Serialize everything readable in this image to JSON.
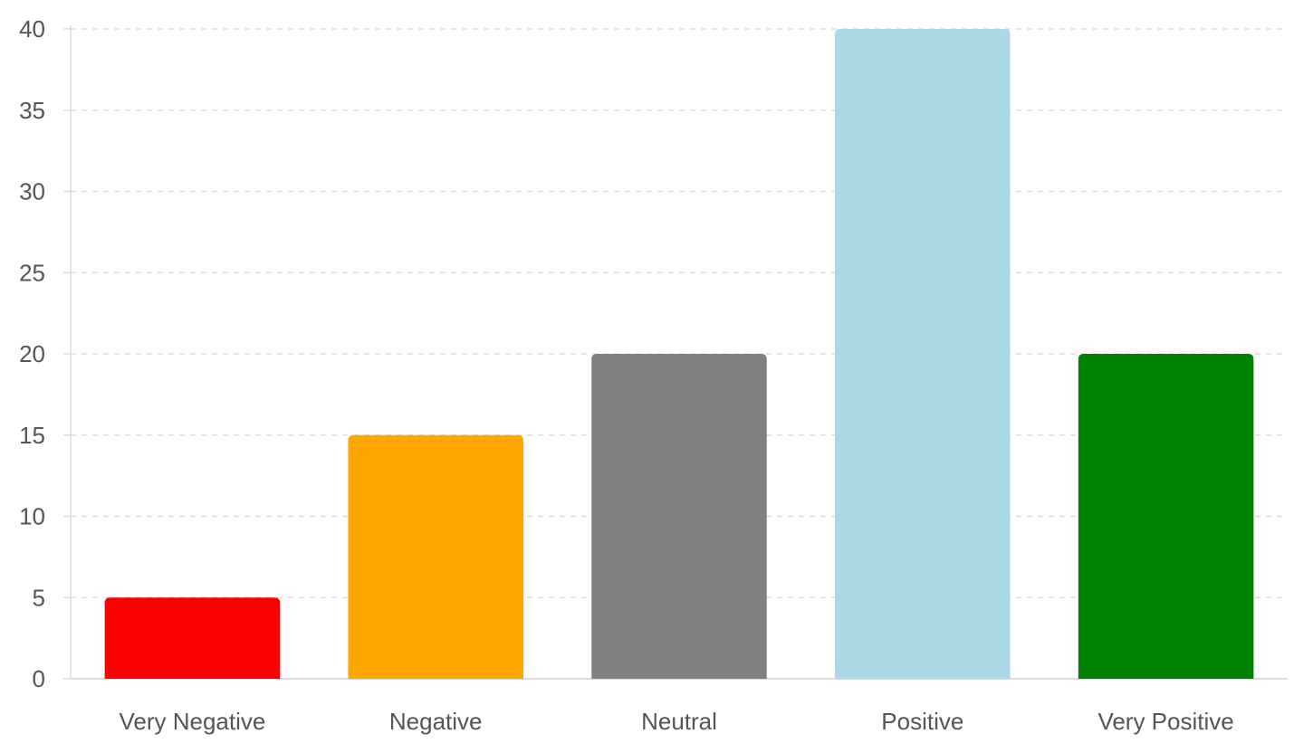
{
  "chart_data": {
    "type": "bar",
    "categories": [
      "Very Negative",
      "Negative",
      "Neutral",
      "Positive",
      "Very Positive"
    ],
    "values": [
      5,
      15,
      20,
      40,
      20
    ],
    "colors": [
      "#ff0000",
      "#ffa500",
      "#808080",
      "#add8e6",
      "#008000"
    ],
    "ylim": [
      0,
      40
    ],
    "yticks": [
      0,
      5,
      10,
      15,
      20,
      25,
      30,
      35,
      40
    ],
    "grid": true,
    "grid_style": "dashed",
    "title": "",
    "xlabel": "",
    "ylabel": ""
  }
}
